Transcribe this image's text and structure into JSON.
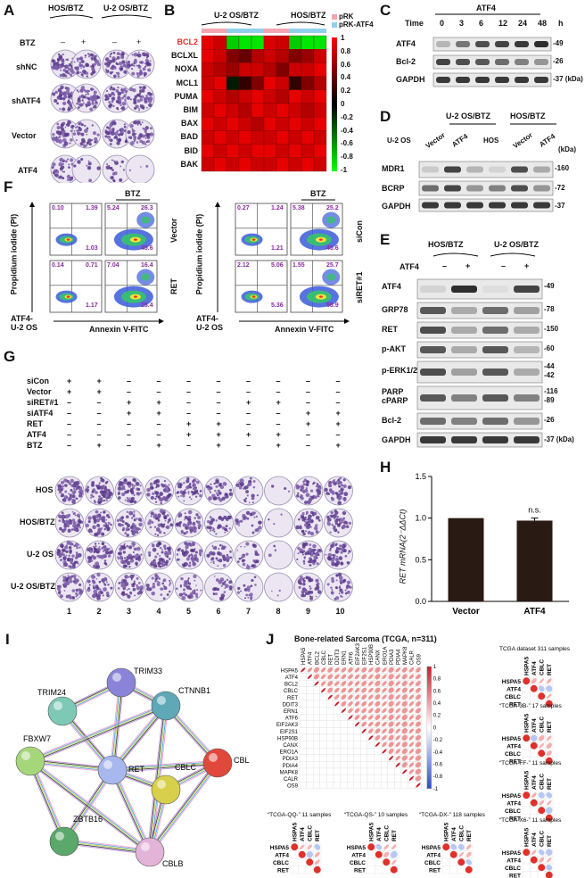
{
  "panels": {
    "A": {
      "label": "A",
      "groups": [
        "HOS/BTZ",
        "U-2 OS/BTZ"
      ],
      "btz_row_label": "BTZ",
      "btz_signs": [
        "–",
        "+",
        "–",
        "+"
      ],
      "rows": [
        "shNC",
        "shATF4",
        "Vector",
        "ATF4"
      ]
    },
    "B": {
      "label": "B",
      "groups": [
        "U-2 OS/BTZ",
        "HOS/BTZ"
      ],
      "legend": [
        "pRK",
        "pRK-ATF4"
      ],
      "rows": [
        "BCL2",
        "BCLXL",
        "NOXA",
        "MCL1",
        "PUMA",
        "BIM",
        "BAX",
        "BAD",
        "BID",
        "BAK"
      ],
      "scale_ticks": [
        "1",
        "0.8",
        "0.6",
        "0.4",
        "0.2",
        "0",
        "-0.2",
        "-0.4",
        "-0.6",
        "-0.8",
        "-1"
      ]
    },
    "C": {
      "label": "C",
      "title": "ATF4",
      "time_label": "Time",
      "times": [
        "0",
        "3",
        "6",
        "12",
        "24",
        "48"
      ],
      "unit": "h",
      "rows": [
        "ATF4",
        "Bcl-2",
        "GAPDH"
      ],
      "mw": [
        "49",
        "26",
        "37 (kDa)"
      ]
    },
    "D": {
      "label": "D",
      "groups": [
        "U-2 OS/BTZ",
        "HOS/BTZ"
      ],
      "lanes": [
        "U-2 OS",
        "Vector",
        "ATF4",
        "HOS",
        "Vector",
        "ATF4"
      ],
      "kda": "(kDa)",
      "rows": [
        "MDR1",
        "BCRP",
        "GAPDH"
      ],
      "mw": [
        "160",
        "72",
        "37"
      ]
    },
    "E": {
      "label": "E",
      "groups": [
        "HOS/BTZ",
        "U-2 OS/BTZ"
      ],
      "atf4_label": "ATF4",
      "signs": [
        "–",
        "+",
        "–",
        "+"
      ],
      "rows": [
        "ATF4",
        "GRP78",
        "RET",
        "p-AKT",
        "p-ERK1/2",
        "PARP",
        "cPARP",
        "Bcl-2",
        "GAPDH"
      ],
      "mw": [
        "49",
        "78",
        "150",
        "60",
        "44",
        "42",
        "116",
        "89",
        "26",
        "37 (kDa)"
      ]
    },
    "F": {
      "label": "F",
      "btz": "BTZ",
      "ylabel": "Propidium iodide (PI)",
      "xlabel": "Annexin V-FITC",
      "cell": "ATF4-\nU-2 OS",
      "cell_l1": "ATF4-",
      "cell_l2": "U-2 OS",
      "left_rows": [
        "Vector",
        "RET"
      ],
      "right_rows": [
        "siCon",
        "siRET#1"
      ],
      "quadrants": [
        [
          "0.10",
          "1.39",
          "1.03"
        ],
        [
          "5.24",
          "26.3",
          "45.6"
        ],
        [
          "0.14",
          "0.71",
          "1.17"
        ],
        [
          "7.04",
          "16.4",
          "28.4"
        ],
        [
          "0.27",
          "1.24",
          "1.21"
        ],
        [
          "5.38",
          "25.2",
          "40.6"
        ],
        [
          "2.12",
          "5.06",
          "5.36"
        ],
        [
          "1.55",
          "25.7",
          "58.9"
        ]
      ]
    },
    "G": {
      "label": "G",
      "treatments": [
        "siCon",
        "Vector",
        "siRET#1",
        "siATF4",
        "RET",
        "ATF4",
        "BTZ"
      ],
      "signs": [
        [
          "+",
          "+",
          "–",
          "–",
          "–",
          "–",
          "–",
          "–",
          "–",
          "–"
        ],
        [
          "+",
          "+",
          "–",
          "–",
          "–",
          "–",
          "–",
          "–",
          "–",
          "–"
        ],
        [
          "–",
          "–",
          "+",
          "+",
          "–",
          "–",
          "+",
          "+",
          "–",
          "–"
        ],
        [
          "–",
          "–",
          "+",
          "+",
          "–",
          "–",
          "–",
          "–",
          "+",
          "+"
        ],
        [
          "–",
          "–",
          "–",
          "–",
          "+",
          "+",
          "–",
          "–",
          "+",
          "+"
        ],
        [
          "–",
          "–",
          "–",
          "–",
          "+",
          "+",
          "+",
          "+",
          "–",
          "–"
        ],
        [
          "–",
          "+",
          "–",
          "+",
          "–",
          "+",
          "–",
          "+",
          "–",
          "+"
        ]
      ],
      "rows": [
        "HOS",
        "HOS/BTZ",
        "U-2 OS",
        "U-2 OS/BTZ"
      ],
      "lanes": [
        "1",
        "2",
        "3",
        "4",
        "5",
        "6",
        "7",
        "8",
        "9",
        "10"
      ]
    },
    "H": {
      "label": "H",
      "ylabel": "RET mRNA(2⁻ΔΔCt)",
      "annotation": "n.s.",
      "chart_data": {
        "type": "bar",
        "categories": [
          "Vector",
          "ATF4"
        ],
        "values": [
          1.0,
          0.97
        ],
        "errors": [
          0.0,
          0.03
        ],
        "ylim": [
          0.0,
          1.5
        ],
        "yticks": [
          "0.0",
          "0.5",
          "1.0",
          "1.5"
        ],
        "colors": [
          "#2a1a14",
          "#2a1a14"
        ]
      }
    },
    "I": {
      "label": "I",
      "nodes": [
        "TRIM33",
        "TRIM24",
        "CTNNB1",
        "FBXW7",
        "RET",
        "CBL",
        "CBLC",
        "ZBTB16",
        "CBLB"
      ]
    },
    "J": {
      "label": "J",
      "title": "Bone-related Sarcoma (TCGA, n=311)",
      "genes": [
        "HSPA5",
        "ATF4",
        "BCL2",
        "CBLC",
        "RET",
        "DDIT3",
        "ERN1",
        "ATF6",
        "EIF2AK3",
        "EIF2S1",
        "HSP90B",
        "CANX",
        "ERO1A",
        "PDIA3",
        "PDIA4",
        "MAPK8",
        "CALR",
        "OS9"
      ],
      "scale_ticks": [
        "1",
        "0.8",
        "0.6",
        "0.4",
        "0.2",
        "0",
        "-0.2",
        "-0.4",
        "-0.6",
        "-0.8",
        "-1"
      ],
      "subsets": [
        "TCGA dataset 311 samples",
        "“TCGA-3B-” 17 samples",
        "“TCGA-FF-” 11 samples",
        "“TCGA-QQ-” 11 samples",
        "“TCGA-QS-” 10 samples",
        "“TCGA-DX-” 118 samples",
        "“TCGA-X6-” 11 samples"
      ],
      "small_genes": [
        "HSPA5",
        "ATF4",
        "CBLC",
        "RET"
      ]
    }
  }
}
